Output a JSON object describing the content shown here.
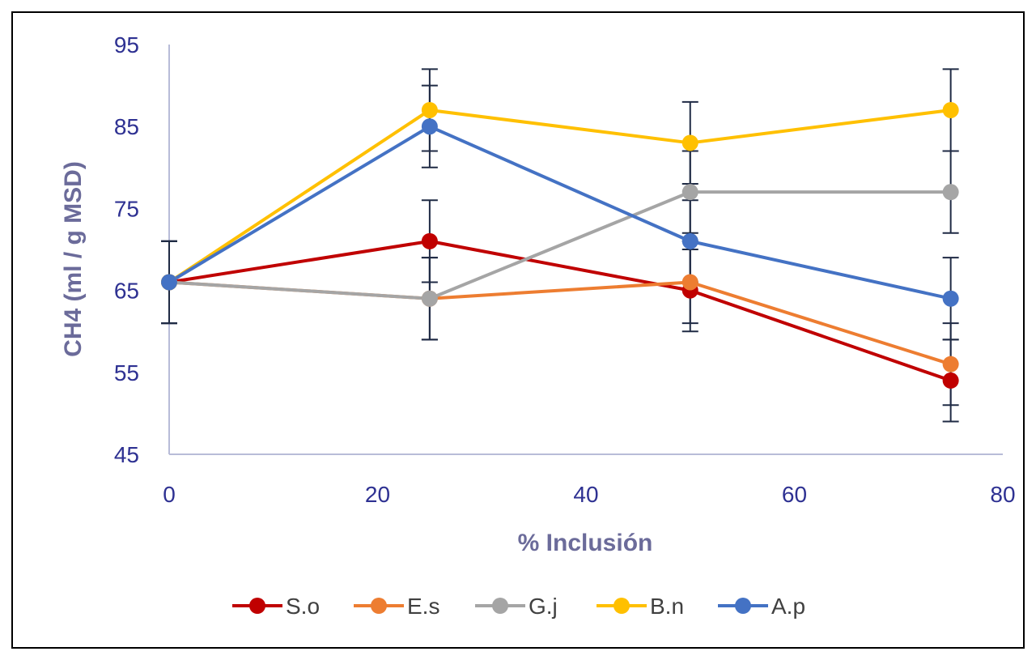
{
  "chart_data": {
    "type": "line",
    "title": "",
    "xlabel": "% Inclusión",
    "ylabel": "CH4 (ml / g MSD)",
    "xlim": [
      0,
      80
    ],
    "ylim": [
      45,
      95
    ],
    "x_ticks": [
      0,
      20,
      40,
      60,
      80
    ],
    "y_ticks": [
      45,
      55,
      65,
      75,
      85,
      95
    ],
    "grid": false,
    "legend_position": "bottom",
    "x": [
      0,
      25,
      50,
      75
    ],
    "error": 5,
    "series": [
      {
        "name": "S.o",
        "color": "#c00000",
        "values": [
          66,
          71,
          65,
          54
        ]
      },
      {
        "name": "E.s",
        "color": "#ed7d31",
        "values": [
          66,
          64,
          66,
          56
        ]
      },
      {
        "name": "G.j",
        "color": "#a5a5a5",
        "values": [
          66,
          64,
          77,
          77
        ]
      },
      {
        "name": "B.n",
        "color": "#ffc000",
        "values": [
          66,
          87,
          83,
          87
        ]
      },
      {
        "name": "A.p",
        "color": "#4472c4",
        "values": [
          66,
          85,
          71,
          64
        ]
      }
    ],
    "errorbar_color": "#1f2a44",
    "axis_color": "#b8bcd8"
  }
}
